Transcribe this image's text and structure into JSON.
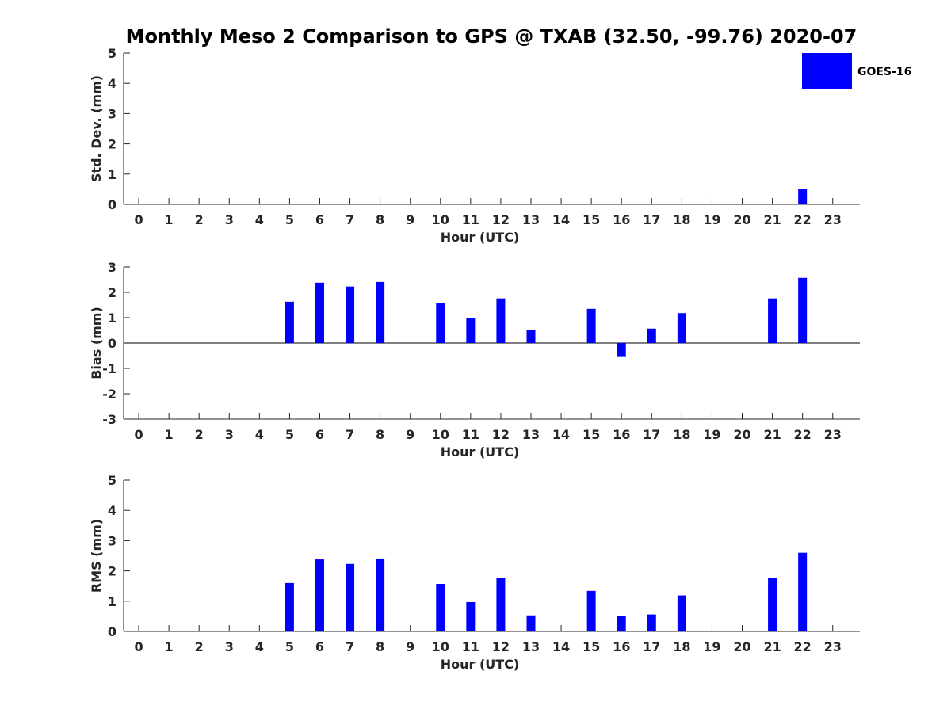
{
  "figure": {
    "title": "Monthly Meso 2 Comparison to GPS @ TXAB (32.50, -99.76) 2020-07"
  },
  "legend": {
    "entries": [
      {
        "label": "GOES-16",
        "color": "#0000ff"
      }
    ],
    "placement": "top-right"
  },
  "colors": {
    "bar": "#0000ff",
    "axis": "#262626",
    "zero_line": "#000000"
  },
  "chart_data": [
    {
      "type": "bar",
      "id": "std",
      "xlabel": "Hour (UTC)",
      "ylabel": "Std. Dev. (mm)",
      "categories": [
        "0",
        "1",
        "2",
        "3",
        "4",
        "5",
        "6",
        "7",
        "8",
        "9",
        "10",
        "11",
        "12",
        "13",
        "14",
        "15",
        "16",
        "17",
        "18",
        "19",
        "20",
        "21",
        "22",
        "23"
      ],
      "xlim": [
        -0.5,
        23.9
      ],
      "ylim": [
        0,
        5
      ],
      "yticks": [
        0,
        1,
        2,
        3,
        4,
        5
      ],
      "grid": false,
      "series": [
        {
          "name": "GOES-16",
          "values": [
            null,
            null,
            null,
            null,
            null,
            null,
            null,
            null,
            null,
            null,
            null,
            null,
            null,
            null,
            null,
            null,
            null,
            null,
            null,
            null,
            null,
            null,
            0.5,
            null
          ]
        }
      ]
    },
    {
      "type": "bar",
      "id": "bias",
      "xlabel": "Hour (UTC)",
      "ylabel": "Bias (mm)",
      "categories": [
        "0",
        "1",
        "2",
        "3",
        "4",
        "5",
        "6",
        "7",
        "8",
        "9",
        "10",
        "11",
        "12",
        "13",
        "14",
        "15",
        "16",
        "17",
        "18",
        "19",
        "20",
        "21",
        "22",
        "23"
      ],
      "xlim": [
        -0.5,
        23.9
      ],
      "ylim": [
        -3,
        3
      ],
      "yticks": [
        -3,
        -2,
        -1,
        0,
        1,
        2,
        3
      ],
      "zero_line": true,
      "grid": false,
      "series": [
        {
          "name": "GOES-16",
          "values": [
            null,
            null,
            null,
            null,
            null,
            1.63,
            2.38,
            2.23,
            2.41,
            null,
            1.57,
            1.0,
            1.76,
            0.53,
            null,
            1.35,
            -0.52,
            0.57,
            1.18,
            null,
            null,
            1.76,
            2.57,
            null
          ]
        }
      ]
    },
    {
      "type": "bar",
      "id": "rms",
      "xlabel": "Hour (UTC)",
      "ylabel": "RMS (mm)",
      "categories": [
        "0",
        "1",
        "2",
        "3",
        "4",
        "5",
        "6",
        "7",
        "8",
        "9",
        "10",
        "11",
        "12",
        "13",
        "14",
        "15",
        "16",
        "17",
        "18",
        "19",
        "20",
        "21",
        "22",
        "23"
      ],
      "xlim": [
        -0.5,
        23.9
      ],
      "ylim": [
        0,
        5
      ],
      "yticks": [
        0,
        1,
        2,
        3,
        4,
        5
      ],
      "grid": false,
      "series": [
        {
          "name": "GOES-16",
          "values": [
            null,
            null,
            null,
            null,
            null,
            1.6,
            2.38,
            2.23,
            2.41,
            null,
            1.57,
            0.97,
            1.76,
            0.53,
            null,
            1.34,
            0.5,
            0.56,
            1.19,
            null,
            null,
            1.76,
            2.6,
            null
          ]
        }
      ]
    }
  ]
}
